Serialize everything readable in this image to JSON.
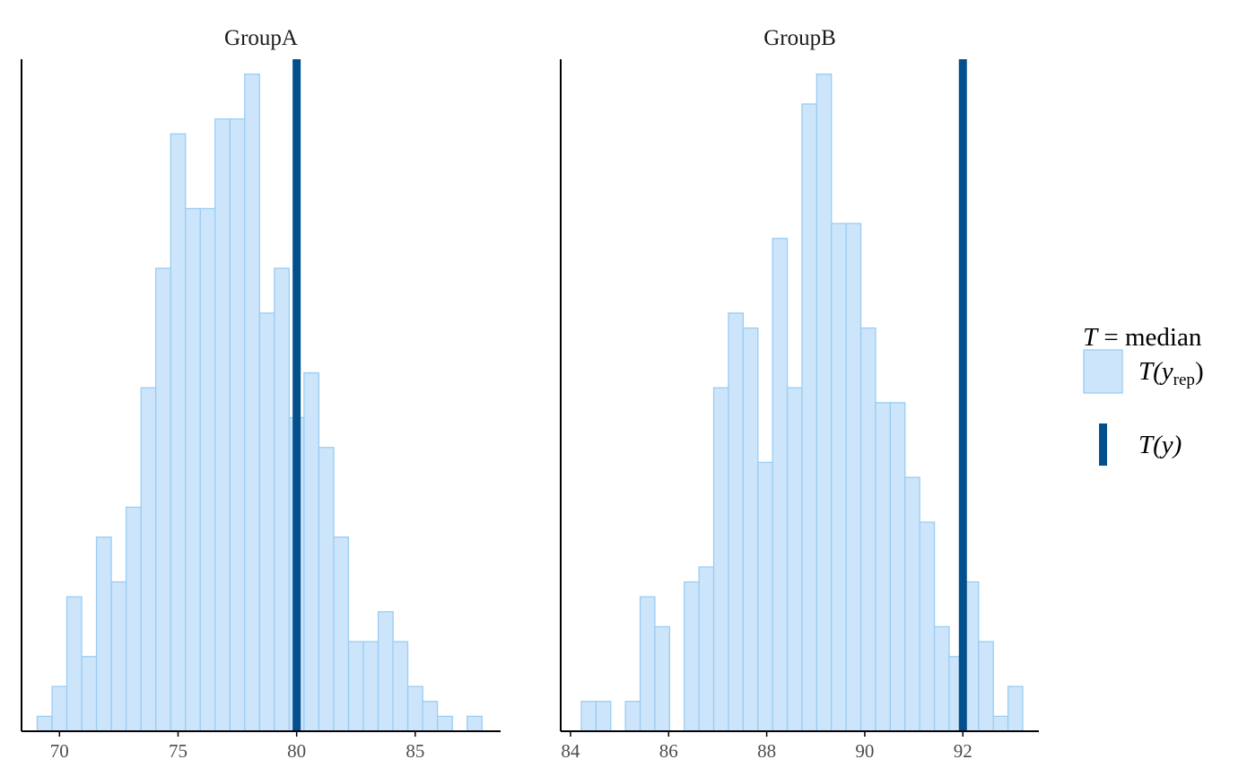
{
  "chart_data": {
    "type": "histogram",
    "legend": {
      "title_stat": "T",
      "title_rest": " = median",
      "entries": [
        {
          "label": "T(y",
          "sub": "rep",
          "close": ")",
          "kind": "fill",
          "color": "#cce5fb",
          "border": "#9acdf2"
        },
        {
          "label": "T(y)",
          "kind": "line",
          "color": "#03508f"
        }
      ],
      "placement": "right"
    },
    "colors": {
      "bar_fill": "#cce5fb",
      "bar_stroke": "#9acdf2",
      "observed": "#03508f"
    },
    "grid": false,
    "panels": [
      {
        "title": "GroupA",
        "xlim": [
          68.4,
          88.6
        ],
        "ylim": [
          0,
          45
        ],
        "xticks": [
          70,
          75,
          80,
          85
        ],
        "bin_width": 0.625,
        "bins": [
          {
            "x0": 69.06,
            "count": 1
          },
          {
            "x0": 69.69,
            "count": 3
          },
          {
            "x0": 70.31,
            "count": 9
          },
          {
            "x0": 70.94,
            "count": 5
          },
          {
            "x0": 71.56,
            "count": 13
          },
          {
            "x0": 72.19,
            "count": 10
          },
          {
            "x0": 72.81,
            "count": 15
          },
          {
            "x0": 73.44,
            "count": 23
          },
          {
            "x0": 74.06,
            "count": 31
          },
          {
            "x0": 74.69,
            "count": 40
          },
          {
            "x0": 75.31,
            "count": 35
          },
          {
            "x0": 75.94,
            "count": 35
          },
          {
            "x0": 76.56,
            "count": 41
          },
          {
            "x0": 77.19,
            "count": 41
          },
          {
            "x0": 77.81,
            "count": 44
          },
          {
            "x0": 78.44,
            "count": 28
          },
          {
            "x0": 79.06,
            "count": 31
          },
          {
            "x0": 79.69,
            "count": 21
          },
          {
            "x0": 80.31,
            "count": 24
          },
          {
            "x0": 80.94,
            "count": 19
          },
          {
            "x0": 81.56,
            "count": 13
          },
          {
            "x0": 82.19,
            "count": 6
          },
          {
            "x0": 82.81,
            "count": 6
          },
          {
            "x0": 83.44,
            "count": 8
          },
          {
            "x0": 84.06,
            "count": 6
          },
          {
            "x0": 84.69,
            "count": 3
          },
          {
            "x0": 85.31,
            "count": 2
          },
          {
            "x0": 85.94,
            "count": 1
          },
          {
            "x0": 87.19,
            "count": 1
          }
        ],
        "observed": 80.0
      },
      {
        "title": "GroupB",
        "xlim": [
          83.8,
          93.55
        ],
        "ylim": [
          0,
          45
        ],
        "xticks": [
          84,
          86,
          88,
          90,
          92
        ],
        "bin_width": 0.3,
        "bins": [
          {
            "x0": 84.22,
            "count": 2
          },
          {
            "x0": 84.52,
            "count": 2
          },
          {
            "x0": 85.12,
            "count": 2
          },
          {
            "x0": 85.42,
            "count": 9
          },
          {
            "x0": 85.72,
            "count": 7
          },
          {
            "x0": 86.32,
            "count": 10
          },
          {
            "x0": 86.62,
            "count": 11
          },
          {
            "x0": 86.92,
            "count": 23
          },
          {
            "x0": 87.22,
            "count": 28
          },
          {
            "x0": 87.52,
            "count": 27
          },
          {
            "x0": 87.82,
            "count": 18
          },
          {
            "x0": 88.12,
            "count": 33
          },
          {
            "x0": 88.42,
            "count": 23
          },
          {
            "x0": 88.72,
            "count": 42
          },
          {
            "x0": 89.02,
            "count": 44
          },
          {
            "x0": 89.32,
            "count": 34
          },
          {
            "x0": 89.62,
            "count": 34
          },
          {
            "x0": 89.92,
            "count": 27
          },
          {
            "x0": 90.22,
            "count": 22
          },
          {
            "x0": 90.52,
            "count": 22
          },
          {
            "x0": 90.82,
            "count": 17
          },
          {
            "x0": 91.12,
            "count": 14
          },
          {
            "x0": 91.42,
            "count": 7
          },
          {
            "x0": 91.72,
            "count": 5
          },
          {
            "x0": 92.02,
            "count": 10
          },
          {
            "x0": 92.32,
            "count": 6
          },
          {
            "x0": 92.62,
            "count": 1
          },
          {
            "x0": 92.92,
            "count": 3
          }
        ],
        "observed": 92.0
      }
    ]
  }
}
